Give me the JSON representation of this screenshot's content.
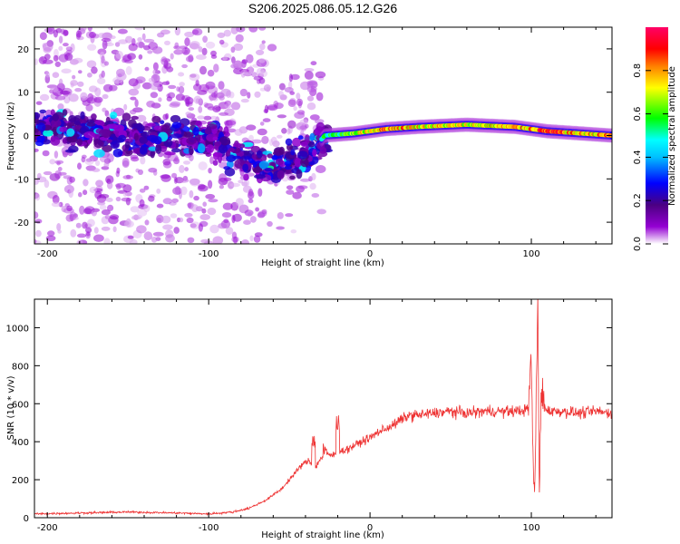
{
  "title": "S206.2025.086.05.12.G26",
  "colors": {
    "snr_line": "#ee3333",
    "axis": "#000000"
  },
  "chart_data": [
    {
      "type": "heatmap",
      "xlabel": "Height of straight line (km)",
      "ylabel": "Frequency (Hz)",
      "xlim": [
        -208,
        150
      ],
      "ylim": [
        -25,
        25
      ],
      "xticks": [
        "-200",
        "-100",
        "0",
        "100"
      ],
      "yticks": [
        "-20",
        "-10",
        "0",
        "10",
        "20"
      ],
      "colorbar": {
        "label": "Normalized spectral amplitude",
        "range": [
          0,
          1
        ],
        "ticks": [
          "0.0",
          "0.2",
          "0.4",
          "0.6",
          "0.8"
        ],
        "colormap": [
          "#ffffff",
          "#9400d3",
          "#4b0082",
          "#0000ff",
          "#00bfff",
          "#00ffff",
          "#00ff00",
          "#ffff00",
          "#ff7f00",
          "#ff0000",
          "#ff0066"
        ]
      },
      "ridge": [
        {
          "x": -208,
          "y": 2,
          "amp": 0.3
        },
        {
          "x": -180,
          "y": 1,
          "amp": 0.35
        },
        {
          "x": -150,
          "y": 0,
          "amp": 0.4
        },
        {
          "x": -120,
          "y": -1,
          "amp": 0.35
        },
        {
          "x": -100,
          "y": 0,
          "amp": 0.3
        },
        {
          "x": -80,
          "y": -5,
          "amp": 0.35
        },
        {
          "x": -60,
          "y": -7,
          "amp": 0.4
        },
        {
          "x": -45,
          "y": -6,
          "amp": 0.45
        },
        {
          "x": -35,
          "y": -3,
          "amp": 0.5
        },
        {
          "x": -28,
          "y": 0,
          "amp": 0.55
        },
        {
          "x": -10,
          "y": 0.5,
          "amp": 0.7
        },
        {
          "x": 10,
          "y": 1.5,
          "amp": 0.9
        },
        {
          "x": 30,
          "y": 2,
          "amp": 0.8
        },
        {
          "x": 60,
          "y": 2.5,
          "amp": 0.75
        },
        {
          "x": 90,
          "y": 2,
          "amp": 0.8
        },
        {
          "x": 110,
          "y": 1,
          "amp": 0.95
        },
        {
          "x": 130,
          "y": 0.5,
          "amp": 0.8
        },
        {
          "x": 150,
          "y": 0,
          "amp": 0.85
        }
      ]
    },
    {
      "type": "line",
      "xlabel": "Height of straight line (km)",
      "ylabel": "SNR (10 * v/v)",
      "xlim": [
        -208,
        150
      ],
      "ylim": [
        0,
        1150
      ],
      "xticks": [
        "-200",
        "-100",
        "0",
        "100"
      ],
      "yticks": [
        "0",
        "200",
        "400",
        "600",
        "800",
        "1000"
      ],
      "series": [
        {
          "x": [
            -208,
            -180,
            -150,
            -120,
            -100,
            -85,
            -75,
            -65,
            -55,
            -48,
            -42,
            -38,
            -34,
            -30,
            -26,
            -22,
            -18,
            -14,
            -10,
            -5,
            0,
            5,
            10,
            15,
            20,
            25,
            30,
            40,
            50,
            60,
            70,
            80,
            90,
            98,
            100,
            101,
            102,
            103,
            104,
            105,
            106,
            108,
            112,
            120,
            130,
            140,
            150
          ],
          "y": [
            20,
            25,
            30,
            25,
            20,
            30,
            50,
            90,
            150,
            220,
            280,
            300,
            260,
            320,
            330,
            330,
            350,
            360,
            380,
            400,
            420,
            450,
            470,
            490,
            520,
            540,
            540,
            550,
            560,
            550,
            560,
            560,
            560,
            570,
            850,
            300,
            100,
            600,
            1150,
            80,
            700,
            580,
            560,
            560,
            550,
            560,
            550
          ]
        }
      ],
      "spikes": [
        {
          "x": -35,
          "y": 430
        },
        {
          "x": -28,
          "y": 390
        },
        {
          "x": -20,
          "y": 540
        }
      ]
    }
  ]
}
